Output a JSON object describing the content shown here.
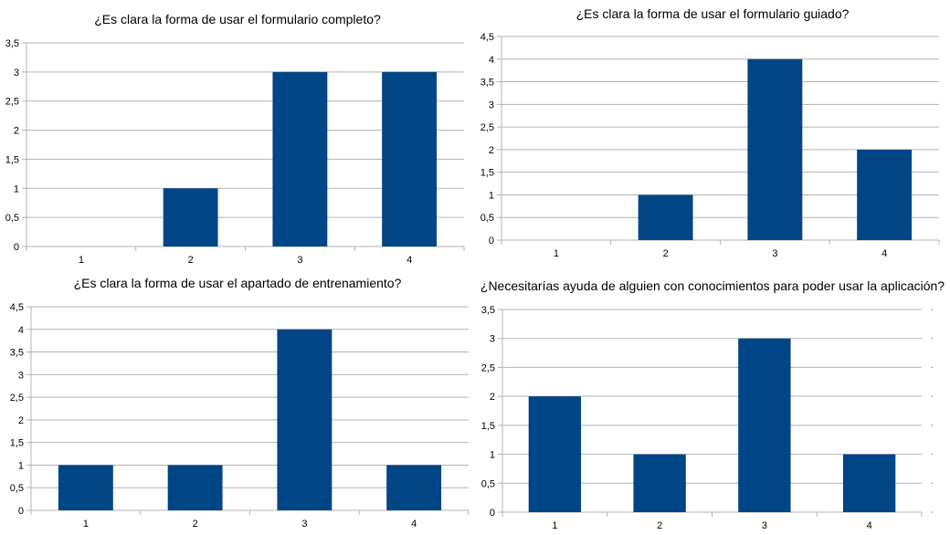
{
  "charts": [
    {
      "title": "¿Es clara la forma de usar el formulario completo?",
      "chart_data": {
        "type": "bar",
        "categories": [
          "1",
          "2",
          "3",
          "4"
        ],
        "values": [
          0,
          1,
          3,
          3
        ],
        "ylim": [
          0,
          3.5
        ],
        "yticks": [
          "0",
          "0,5",
          "1",
          "1,5",
          "2",
          "2,5",
          "3",
          "3,5"
        ],
        "grid": true,
        "bar_color": "#004586"
      }
    },
    {
      "title": "¿Es clara la forma de usar el formulario guiado?",
      "chart_data": {
        "type": "bar",
        "categories": [
          "1",
          "2",
          "3",
          "4"
        ],
        "values": [
          0,
          1,
          4,
          2
        ],
        "ylim": [
          0,
          4.5
        ],
        "yticks": [
          "0",
          "0,5",
          "1",
          "1,5",
          "2",
          "2,5",
          "3",
          "3,5",
          "4",
          "4,5"
        ],
        "grid": true,
        "bar_color": "#004586"
      }
    },
    {
      "title": "¿Es clara la forma de usar el apartado de entrenamiento?",
      "chart_data": {
        "type": "bar",
        "categories": [
          "1",
          "2",
          "3",
          "4"
        ],
        "values": [
          1,
          1,
          4,
          1
        ],
        "ylim": [
          0,
          4.5
        ],
        "yticks": [
          "0",
          "0,5",
          "1",
          "1,5",
          "2",
          "2,5",
          "3",
          "3,5",
          "4",
          "4,5"
        ],
        "grid": true,
        "bar_color": "#004586"
      }
    },
    {
      "title": "¿Necesitarías ayuda de alguien con conocimientos para poder usar la aplicación?",
      "chart_data": {
        "type": "bar",
        "categories": [
          "1",
          "2",
          "3",
          "4"
        ],
        "values": [
          2,
          1,
          3,
          1
        ],
        "ylim": [
          0,
          3.5
        ],
        "yticks": [
          "0",
          "0,5",
          "1",
          "1,5",
          "2",
          "2,5",
          "3",
          "3,5"
        ],
        "grid": true,
        "bar_color": "#004586"
      }
    }
  ]
}
